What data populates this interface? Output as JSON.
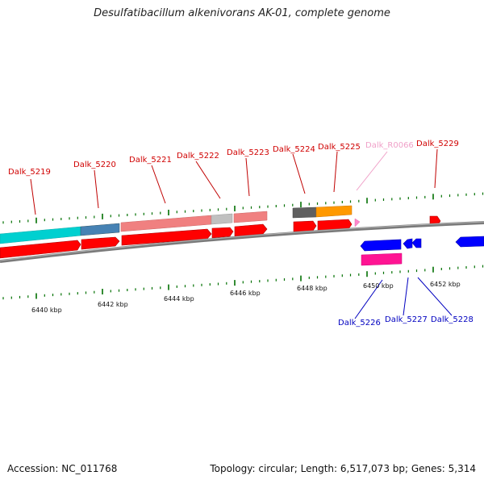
{
  "title": "Desulfatibacillum alkenivorans AK-01, complete genome",
  "footer": {
    "accession": "Accession: NC_011768",
    "summary": "Topology: circular; Length: 6,517,073 bp; Genes: 5,314"
  },
  "colors": {
    "forward_cds": "#ff0000",
    "reverse_cds": "#0000ff",
    "rna": "#ff88cc",
    "backbone": "#888888",
    "ticks": "#007000",
    "cog_cyan": "#00d0d0",
    "cog_steelblue": "#4682b4",
    "cog_salmon": "#f08080",
    "cog_lightgray": "#c0c0c0",
    "cog_darkgray": "#606060",
    "cog_orange": "#ff9900",
    "cog_magenta": "#ff1493"
  },
  "scale_labels": [
    "6440 kbp",
    "6442 kbp",
    "6444 kbp",
    "6446 kbp",
    "6448 kbp",
    "6450 kbp",
    "6452 kbp"
  ],
  "genes_top": [
    {
      "id": "Dalk_5219",
      "strand": "+",
      "color": "red"
    },
    {
      "id": "Dalk_5220",
      "strand": "+",
      "color": "red"
    },
    {
      "id": "Dalk_5221",
      "strand": "+",
      "color": "red"
    },
    {
      "id": "Dalk_5222",
      "strand": "+",
      "color": "red"
    },
    {
      "id": "Dalk_5223",
      "strand": "+",
      "color": "red"
    },
    {
      "id": "Dalk_5224",
      "strand": "+",
      "color": "red"
    },
    {
      "id": "Dalk_5225",
      "strand": "+",
      "color": "red"
    },
    {
      "id": "Dalk_R0066",
      "strand": "+",
      "color": "pink"
    },
    {
      "id": "Dalk_5229",
      "strand": "+",
      "color": "red"
    }
  ],
  "genes_bottom": [
    {
      "id": "Dalk_5226",
      "strand": "-",
      "color": "blue"
    },
    {
      "id": "Dalk_5227",
      "strand": "-",
      "color": "blue"
    },
    {
      "id": "Dalk_5228",
      "strand": "-",
      "color": "blue"
    }
  ]
}
